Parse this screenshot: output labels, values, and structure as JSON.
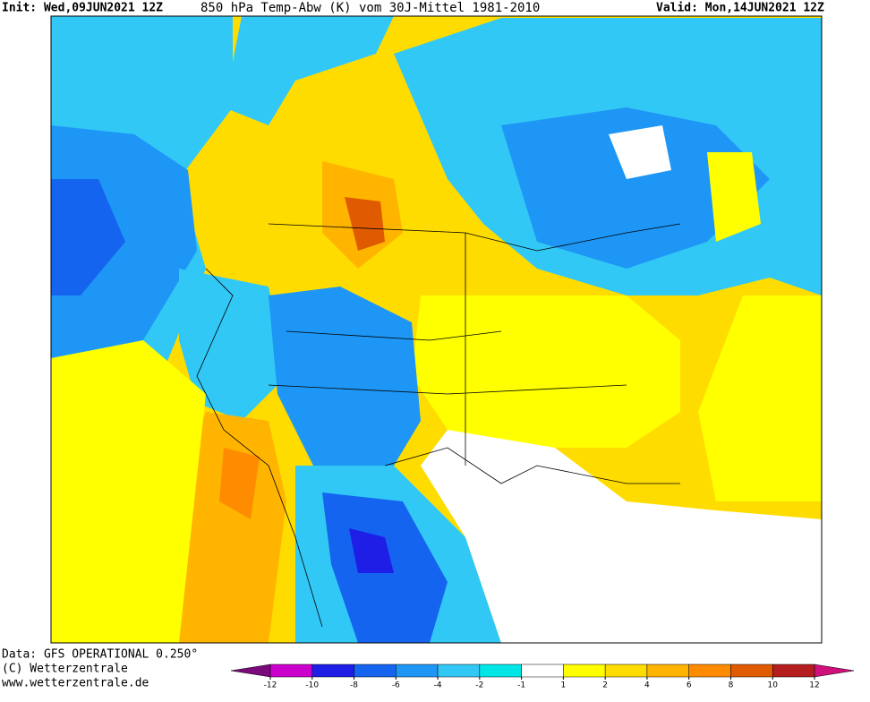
{
  "header": {
    "init": "Init: Wed,09JUN2021 12Z",
    "title": "850 hPa Temp-Abw (K) vom 30J-Mittel 1981-2010",
    "valid": "Valid: Mon,14JUN2021 12Z"
  },
  "footer": {
    "data": "Data: GFS OPERATIONAL 0.250°",
    "copyright": "(C) Wetterzentrale",
    "url": "www.wetterzentrale.de"
  },
  "colorbar": {
    "ticks": [
      -12,
      -10,
      -8,
      -6,
      -4,
      -2,
      -1,
      1,
      2,
      4,
      6,
      8,
      10,
      12
    ],
    "colors": [
      "#7a0a7a",
      "#cc00cc",
      "#1e1ee6",
      "#1464f0",
      "#1e96f5",
      "#32c8f5",
      "#00e6e6",
      "#ffffff",
      "#ffff00",
      "#ffdc00",
      "#ffb400",
      "#ff8c00",
      "#e05a00",
      "#b41e1e",
      "#d0107c"
    ]
  }
}
